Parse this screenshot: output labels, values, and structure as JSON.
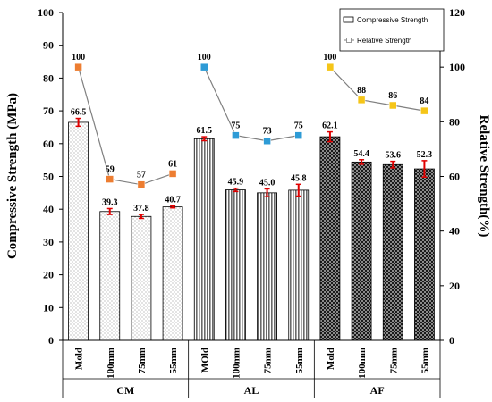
{
  "chart_data": {
    "type": "bar",
    "groups": [
      {
        "label": "CM",
        "categories": [
          "Mold",
          "100mm",
          "75mm",
          "55mm"
        ],
        "pattern": "dots"
      },
      {
        "label": "AL",
        "categories": [
          "MOld",
          "100mm",
          "75mm",
          "55mm"
        ],
        "pattern": "stripes"
      },
      {
        "label": "AF",
        "categories": [
          "Mold",
          "100mm",
          "75mm",
          "55mm"
        ],
        "pattern": "checker"
      }
    ],
    "series": [
      {
        "name": "Compressive Strength",
        "type": "bar",
        "axis": "left",
        "values": [
          66.5,
          39.3,
          37.8,
          40.7,
          61.5,
          45.9,
          45.0,
          45.8,
          62.1,
          54.4,
          53.6,
          52.3
        ],
        "labels": [
          "66.5",
          "39.3",
          "37.8",
          "40.7",
          "61.5",
          "45.9",
          "45.0",
          "45.8",
          "62.1",
          "54.4",
          "53.6",
          "52.3"
        ],
        "errors": [
          1.2,
          0.9,
          0.6,
          0.3,
          0.6,
          0.5,
          1.2,
          1.8,
          1.5,
          0.7,
          1.0,
          2.5
        ]
      },
      {
        "name": "Relative Strength",
        "type": "line",
        "axis": "right",
        "values": [
          100,
          59,
          57,
          61,
          100,
          75,
          73,
          75,
          100,
          88,
          86,
          84
        ],
        "labels": [
          "100",
          "59",
          "57",
          "61",
          "100",
          "75",
          "73",
          "75",
          "100",
          "88",
          "86",
          "84"
        ],
        "group_colors": [
          "#ed7d31",
          "#2e9bd6",
          "#f5c518"
        ]
      }
    ],
    "ylabel": "Compressive Strength (MPa)",
    "y2label": "Relative Strength(%)",
    "ylim": [
      0,
      100
    ],
    "y2lim": [
      0,
      120
    ],
    "yticks": [
      "0",
      "10",
      "20",
      "30",
      "40",
      "50",
      "60",
      "70",
      "80",
      "90",
      "100"
    ],
    "y2ticks": [
      "0",
      "20",
      "40",
      "60",
      "80",
      "100",
      "120"
    ],
    "grid": false,
    "legend_position": "top-right",
    "colors": {
      "error_bar": "#e00000",
      "line": "#808080",
      "bar_edge": "#000000"
    }
  }
}
